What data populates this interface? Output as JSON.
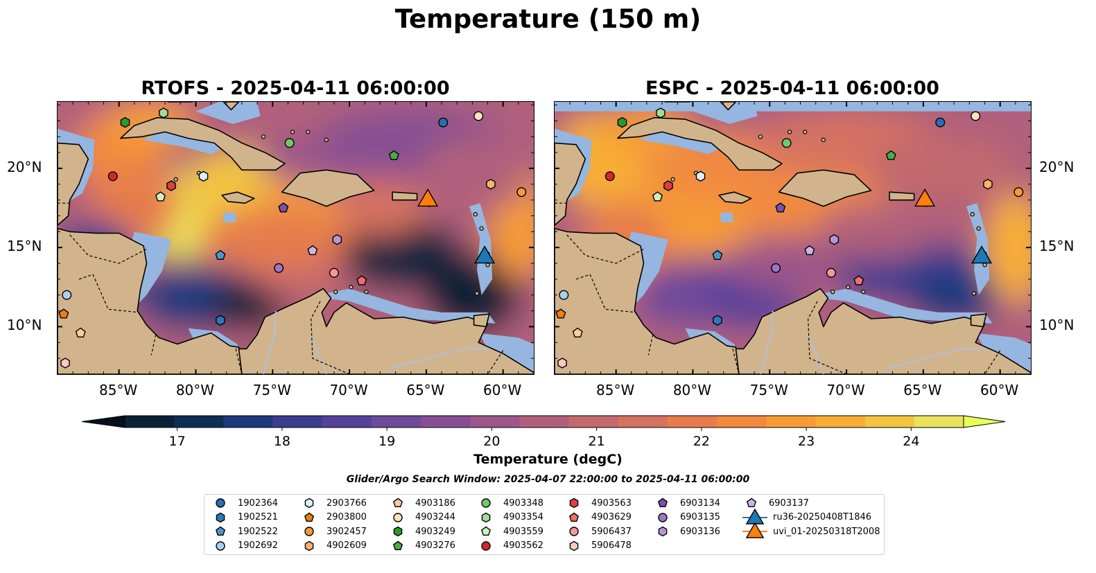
{
  "figure": {
    "title": "Temperature (150 m)",
    "search_window": "Glider/Argo Search Window: 2025-04-07 22:00:00 to 2025-04-11 06:00:00"
  },
  "panels": [
    {
      "title": "RTOFS - 2025-04-11 06:00:00",
      "model": "RTOFS"
    },
    {
      "title": "ESPC - 2025-04-11 06:00:00",
      "model": "ESPC"
    }
  ],
  "axes": {
    "lon_range": [
      -89,
      -58
    ],
    "lat_range": [
      7,
      24.2
    ],
    "lon_ticks": [
      "85°W",
      "80°W",
      "75°W",
      "70°W",
      "65°W",
      "60°W"
    ],
    "lat_ticks": [
      "20°N",
      "15°N",
      "10°N"
    ]
  },
  "colorbar": {
    "label": "Temperature (degC)",
    "ticks": [
      "17",
      "18",
      "19",
      "20",
      "21",
      "22",
      "23",
      "24"
    ],
    "range": [
      16.5,
      24.5
    ],
    "colors": [
      "#0a2236",
      "#0d2e55",
      "#1c3b7e",
      "#3a3d91",
      "#55409a",
      "#6e4a9a",
      "#874f93",
      "#9c5689",
      "#b0607c",
      "#c3696e",
      "#d67260",
      "#e67c4d",
      "#f18a3f",
      "#f69b35",
      "#f7ae34",
      "#f2c440",
      "#eae25c"
    ],
    "extend_low": "#05101c",
    "extend_high": "#e8ff5a"
  },
  "map_colors": {
    "land": "#d2b48c",
    "shelf": "#95b6e0",
    "deep_cold": "#0b2540",
    "river": "#a7c2e3"
  },
  "legend": {
    "items": [
      {
        "label": "1902364",
        "marker": "circle",
        "color": "#2a6fb0"
      },
      {
        "label": "1902521",
        "marker": "hexagon",
        "color": "#2f78b8"
      },
      {
        "label": "1902522",
        "marker": "pentagon",
        "color": "#4f95cc"
      },
      {
        "label": "1902692",
        "marker": "circle",
        "color": "#a8cfee"
      },
      {
        "label": "2903766",
        "marker": "hexagon",
        "color": "#daeefc"
      },
      {
        "label": "2903800",
        "marker": "pentagon",
        "color": "#f07c12"
      },
      {
        "label": "3902457",
        "marker": "circle",
        "color": "#f8983a"
      },
      {
        "label": "4902609",
        "marker": "hexagon",
        "color": "#f9b271"
      },
      {
        "label": "4903186",
        "marker": "pentagon",
        "color": "#fbcb97"
      },
      {
        "label": "4903244",
        "marker": "circle",
        "color": "#fde0c0"
      },
      {
        "label": "4903249",
        "marker": "hexagon",
        "color": "#2b9a2b"
      },
      {
        "label": "4903276",
        "marker": "pentagon",
        "color": "#45ad45"
      },
      {
        "label": "4903348",
        "marker": "circle",
        "color": "#6fc96a"
      },
      {
        "label": "4903354",
        "marker": "hexagon",
        "color": "#a0dc96"
      },
      {
        "label": "4903559",
        "marker": "pentagon",
        "color": "#cdf0c3"
      },
      {
        "label": "4903562",
        "marker": "circle",
        "color": "#d62728"
      },
      {
        "label": "4903563",
        "marker": "hexagon",
        "color": "#df4042"
      },
      {
        "label": "4903629",
        "marker": "pentagon",
        "color": "#ec6f6a"
      },
      {
        "label": "5906437",
        "marker": "circle",
        "color": "#f4989a"
      },
      {
        "label": "5906478",
        "marker": "hexagon",
        "color": "#fcc8c6"
      },
      {
        "label": "6903134",
        "marker": "pentagon",
        "color": "#7b4fae"
      },
      {
        "label": "6903135",
        "marker": "circle",
        "color": "#9c77c4"
      },
      {
        "label": "6903136",
        "marker": "hexagon",
        "color": "#b597d6"
      },
      {
        "label": "6903137",
        "marker": "pentagon",
        "color": "#ccb5e6"
      },
      {
        "label": "ru36-20250408T1846",
        "marker": "triangle",
        "color": "#1f77b4"
      },
      {
        "label": "uvi_01-20250318T2008",
        "marker": "triangle",
        "color": "#ff7f0e"
      }
    ]
  },
  "floats": [
    {
      "id": "1902364",
      "lon": -63.9,
      "lat": 22.9
    },
    {
      "id": "1902521",
      "lon": -78.4,
      "lat": 10.4
    },
    {
      "id": "1902522",
      "lon": -78.4,
      "lat": 14.5
    },
    {
      "id": "1902692",
      "lon": -88.4,
      "lat": 12.0
    },
    {
      "id": "2903766",
      "lon": -79.5,
      "lat": 19.5
    },
    {
      "id": "2903800",
      "lon": -88.6,
      "lat": 10.8
    },
    {
      "id": "3902457",
      "lon": -58.8,
      "lat": 18.5
    },
    {
      "id": "4902609",
      "lon": -60.8,
      "lat": 19.0
    },
    {
      "id": "4903186",
      "lon": -87.5,
      "lat": 9.6
    },
    {
      "id": "4903244",
      "lon": -61.6,
      "lat": 23.3
    },
    {
      "id": "4903249",
      "lon": -84.6,
      "lat": 22.9
    },
    {
      "id": "4903276",
      "lon": -67.1,
      "lat": 20.8
    },
    {
      "id": "4903348",
      "lon": -73.9,
      "lat": 21.6
    },
    {
      "id": "4903354",
      "lon": -82.1,
      "lat": 23.5
    },
    {
      "id": "4903559",
      "lon": -82.3,
      "lat": 18.2
    },
    {
      "id": "4903562",
      "lon": -85.4,
      "lat": 19.5
    },
    {
      "id": "4903563",
      "lon": -81.6,
      "lat": 18.9
    },
    {
      "id": "4903629",
      "lon": -69.2,
      "lat": 12.9
    },
    {
      "id": "5906437",
      "lon": -71.0,
      "lat": 13.4
    },
    {
      "id": "5906478",
      "lon": -88.5,
      "lat": 7.7
    },
    {
      "id": "6903134",
      "lon": -74.3,
      "lat": 17.5
    },
    {
      "id": "6903135",
      "lon": -74.6,
      "lat": 13.7
    },
    {
      "id": "6903136",
      "lon": -70.8,
      "lat": 15.5
    },
    {
      "id": "6903137",
      "lon": -72.4,
      "lat": 14.8
    }
  ],
  "gliders": [
    {
      "id": "ru36-20250408T1846",
      "lon": -61.2,
      "lat": 14.5
    },
    {
      "id": "uvi_01-20250318T2008",
      "lon": -64.9,
      "lat": 18.1
    }
  ]
}
